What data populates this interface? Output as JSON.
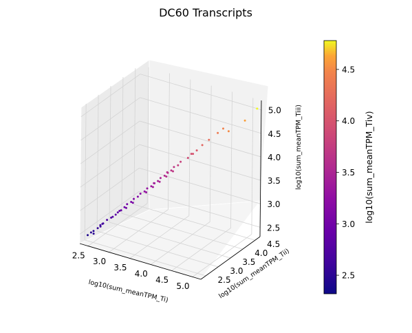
{
  "chart_data": {
    "type": "scatter",
    "projection": "3d",
    "title": "DC60 Transcripts",
    "xlabel": "log10(sum_meanTPM_Ti)",
    "ylabel": "log10(sum_meanTPM_Tii)",
    "zlabel": "log10(sum_meanTPM_Tiii)",
    "xlim": [
      2.3,
      5.2
    ],
    "ylim": [
      2.3,
      4.7
    ],
    "zlim": [
      2.3,
      5.2
    ],
    "xticks": [
      "2.5",
      "3.0",
      "3.5",
      "4.0",
      "4.5",
      "5.0"
    ],
    "yticks": [
      "2.5",
      "3.0",
      "3.5",
      "4.0",
      "4.5"
    ],
    "zticks": [
      "2.5",
      "3.0",
      "3.5",
      "4.0",
      "4.5",
      "5.0"
    ],
    "grid": true,
    "colormap": "plasma",
    "colorbar": {
      "label": "log10(sum_meanTPM_Tiv)",
      "range": [
        2.32,
        4.78
      ],
      "ticks": [
        "2.5",
        "3.0",
        "3.5",
        "4.0",
        "4.5"
      ]
    },
    "points": [
      [
        2.4,
        2.45,
        2.45,
        2.42
      ],
      [
        2.45,
        2.5,
        2.5,
        2.48
      ],
      [
        2.5,
        2.52,
        2.48,
        2.5
      ],
      [
        2.55,
        2.6,
        2.58,
        2.55
      ],
      [
        2.48,
        2.55,
        2.52,
        2.46
      ],
      [
        2.6,
        2.62,
        2.65,
        2.6
      ],
      [
        2.62,
        2.7,
        2.66,
        2.65
      ],
      [
        2.7,
        2.72,
        2.75,
        2.7
      ],
      [
        2.75,
        2.8,
        2.78,
        2.74
      ],
      [
        2.8,
        2.78,
        2.82,
        2.8
      ],
      [
        2.66,
        2.6,
        2.7,
        2.66
      ],
      [
        2.58,
        2.66,
        2.6,
        2.6
      ],
      [
        2.85,
        2.9,
        2.88,
        2.85
      ],
      [
        2.9,
        2.95,
        2.92,
        2.9
      ],
      [
        2.95,
        3.0,
        2.98,
        2.96
      ],
      [
        3.0,
        3.02,
        3.05,
        3.0
      ],
      [
        3.05,
        3.1,
        3.08,
        3.05
      ],
      [
        3.1,
        3.12,
        3.15,
        3.12
      ],
      [
        3.15,
        3.2,
        3.18,
        3.16
      ],
      [
        3.2,
        3.22,
        3.25,
        3.2
      ],
      [
        2.92,
        2.85,
        2.95,
        2.9
      ],
      [
        3.02,
        2.95,
        3.0,
        3.0
      ],
      [
        3.12,
        3.05,
        3.1,
        3.08
      ],
      [
        2.8,
        2.9,
        2.82,
        2.82
      ],
      [
        3.25,
        3.3,
        3.28,
        3.26
      ],
      [
        3.3,
        3.32,
        3.35,
        3.3
      ],
      [
        3.35,
        3.4,
        3.38,
        3.36
      ],
      [
        3.4,
        3.42,
        3.45,
        3.4
      ],
      [
        3.45,
        3.5,
        3.48,
        3.46
      ],
      [
        3.5,
        3.52,
        3.55,
        3.5
      ],
      [
        3.55,
        3.6,
        3.58,
        3.56
      ],
      [
        3.6,
        3.62,
        3.66,
        3.6
      ],
      [
        3.32,
        3.25,
        3.3,
        3.3
      ],
      [
        3.42,
        3.35,
        3.4,
        3.4
      ],
      [
        3.52,
        3.45,
        3.5,
        3.48
      ],
      [
        3.38,
        3.48,
        3.42,
        3.4
      ],
      [
        3.65,
        3.7,
        3.68,
        3.66
      ],
      [
        3.7,
        3.72,
        3.76,
        3.7
      ],
      [
        3.75,
        3.8,
        3.78,
        3.76
      ],
      [
        3.8,
        3.82,
        3.86,
        3.8
      ],
      [
        3.62,
        3.55,
        3.6,
        3.6
      ],
      [
        3.72,
        3.65,
        3.7,
        3.7
      ],
      [
        3.58,
        3.68,
        3.62,
        3.6
      ],
      [
        3.9,
        3.95,
        3.92,
        3.9
      ],
      [
        3.95,
        4.0,
        4.0,
        3.96
      ],
      [
        4.05,
        4.05,
        4.08,
        4.05
      ],
      [
        4.0,
        3.98,
        4.02,
        4.0
      ],
      [
        4.15,
        4.1,
        4.2,
        4.18
      ],
      [
        4.25,
        4.2,
        4.3,
        4.25
      ],
      [
        4.4,
        4.3,
        4.45,
        4.38
      ],
      [
        4.5,
        4.35,
        4.55,
        4.45
      ],
      [
        4.6,
        4.4,
        4.5,
        4.5
      ],
      [
        4.9,
        4.55,
        4.75,
        4.6
      ],
      [
        5.1,
        4.7,
        5.0,
        4.78
      ]
    ]
  }
}
